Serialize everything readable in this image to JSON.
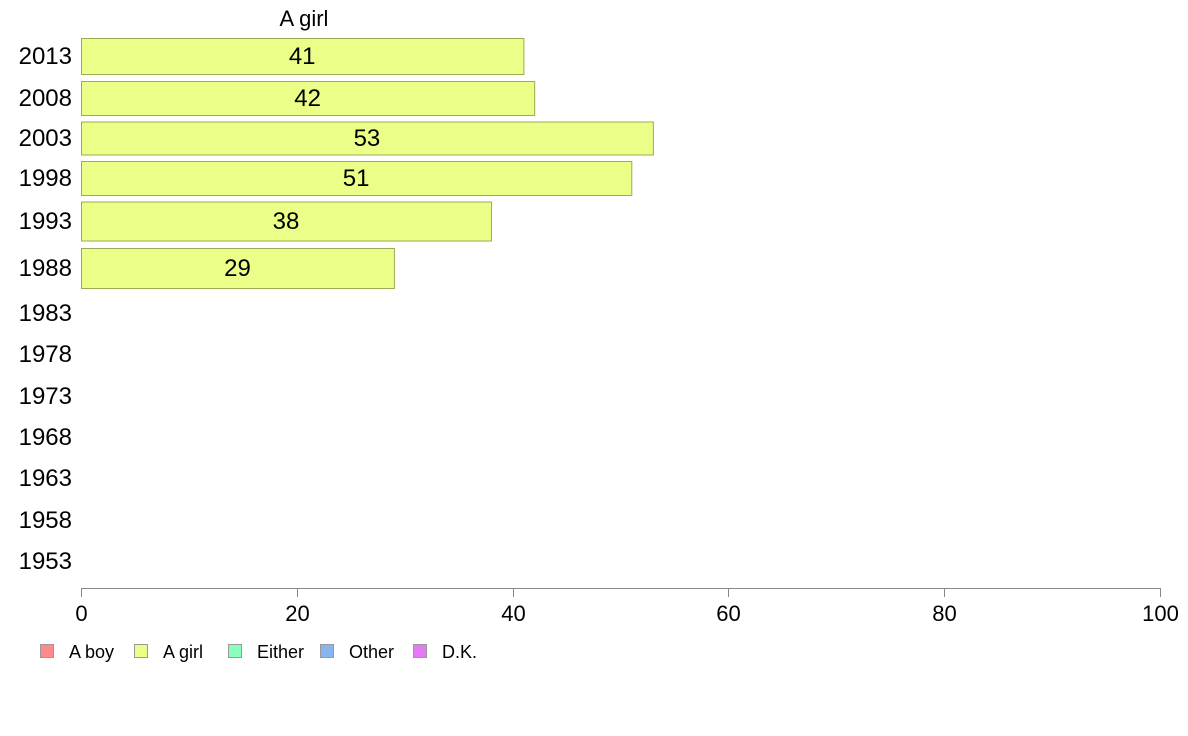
{
  "chart_data": {
    "type": "bar",
    "orientation": "horizontal",
    "title": "",
    "xlabel": "",
    "ylabel": "",
    "xlim": [
      0,
      100
    ],
    "x_ticks": [
      0,
      20,
      40,
      60,
      80,
      100
    ],
    "grid": false,
    "categories": [
      "2013",
      "2008",
      "2003",
      "1998",
      "1993",
      "1988",
      "1983",
      "1978",
      "1973",
      "1968",
      "1963",
      "1958",
      "1953"
    ],
    "series": [
      {
        "name": "A girl",
        "color": "#ebff88",
        "values": [
          41,
          42,
          53,
          51,
          38,
          29,
          null,
          null,
          null,
          null,
          null,
          null,
          null
        ]
      }
    ],
    "legend": {
      "position": "bottom-left",
      "entries": [
        {
          "label": "A boy",
          "color": "#ff8a8a"
        },
        {
          "label": "A girl",
          "color": "#ebff88"
        },
        {
          "label": "Either",
          "color": "#88ffbb"
        },
        {
          "label": "Other",
          "color": "#88b4f2"
        },
        {
          "label": "D.K.",
          "color": "#e47af4"
        }
      ]
    }
  }
}
